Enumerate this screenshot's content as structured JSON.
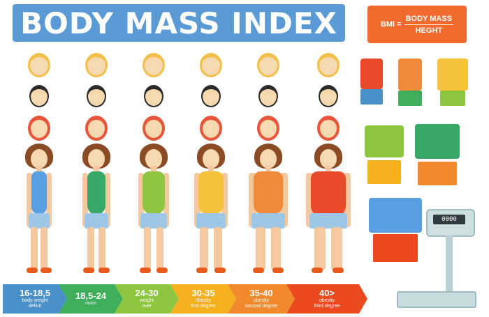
{
  "header": {
    "title": "BODY MASS INDEX",
    "formula_lhs": "BMI =",
    "formula_numerator": "BODY MASS",
    "formula_denominator": "HEGHT"
  },
  "scale": {
    "display": "0000"
  },
  "categories": [
    {
      "range": "16-18,5",
      "desc_line1": "body weight",
      "desc_line2": "deficit",
      "color": "#4a90c8",
      "top_color": "#5aa0e0"
    },
    {
      "range": "18,5-24",
      "desc_line1": "norm",
      "desc_line2": "",
      "color": "#3fae5a",
      "top_color": "#38a868"
    },
    {
      "range": "24-30",
      "desc_line1": "weight",
      "desc_line2": "over",
      "color": "#8cc63f",
      "top_color": "#8cc63f"
    },
    {
      "range": "30-35",
      "desc_line1": "obesity",
      "desc_line2": "first degree",
      "color": "#f5b01e",
      "top_color": "#f5c23a"
    },
    {
      "range": "35-40",
      "desc_line1": "obesity",
      "desc_line2": "second degree",
      "color": "#f08a2c",
      "top_color": "#f08a3a"
    },
    {
      "range": "40>",
      "desc_line1": "obesity",
      "desc_line2": "third degree",
      "color": "#ea4a1e",
      "top_color": "#e84a2a"
    }
  ]
}
